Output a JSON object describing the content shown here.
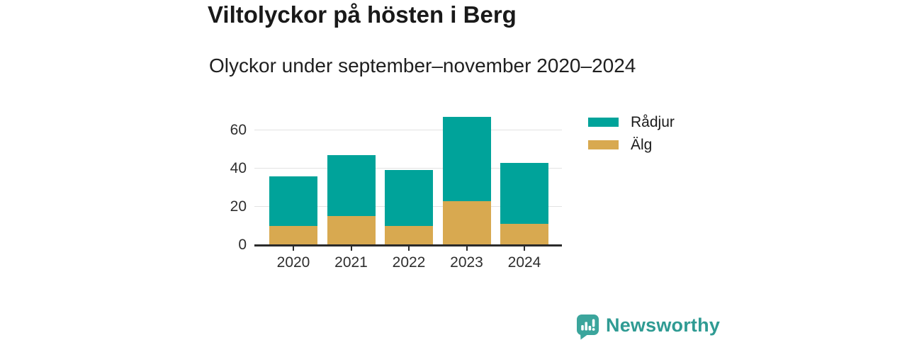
{
  "header": {
    "title": "Viltolyckor på hösten i Berg",
    "subtitle": "Olyckor under september–november 2020–2024"
  },
  "chart_data": {
    "type": "bar",
    "stacked": true,
    "title": "Viltolyckor på hösten i Berg",
    "subtitle": "Olyckor under september–november 2020–2024",
    "categories": [
      "2020",
      "2021",
      "2022",
      "2023",
      "2024"
    ],
    "series": [
      {
        "name": "Rådjur",
        "color": "#00a39a",
        "stack_position": "top",
        "values": [
          26,
          32,
          29,
          44,
          32
        ]
      },
      {
        "name": "Älg",
        "color": "#d8a950",
        "stack_position": "bottom",
        "values": [
          10,
          15,
          10,
          23,
          11
        ]
      }
    ],
    "totals": [
      36,
      47,
      39,
      67,
      43
    ],
    "xlabel": "",
    "ylabel": "",
    "y_ticks": [
      0,
      20,
      40,
      60
    ],
    "ylim": [
      0,
      69
    ],
    "grid": "horizontal",
    "legend_position": "right"
  },
  "legend": {
    "items": [
      {
        "label": "Rådjur",
        "color": "#00a39a"
      },
      {
        "label": "Älg",
        "color": "#d8a950"
      }
    ]
  },
  "footer": {
    "brand": "Newsworthy",
    "brand_color": "#2f9b93",
    "icon_color": "#3ba59c",
    "logo_icon": "bar-chart-speech-bubble-icon"
  },
  "colors": {
    "background": "#ffffff",
    "gridline": "#e2e2e2",
    "axis": "#2b2b2b",
    "title_text": "#191919"
  }
}
